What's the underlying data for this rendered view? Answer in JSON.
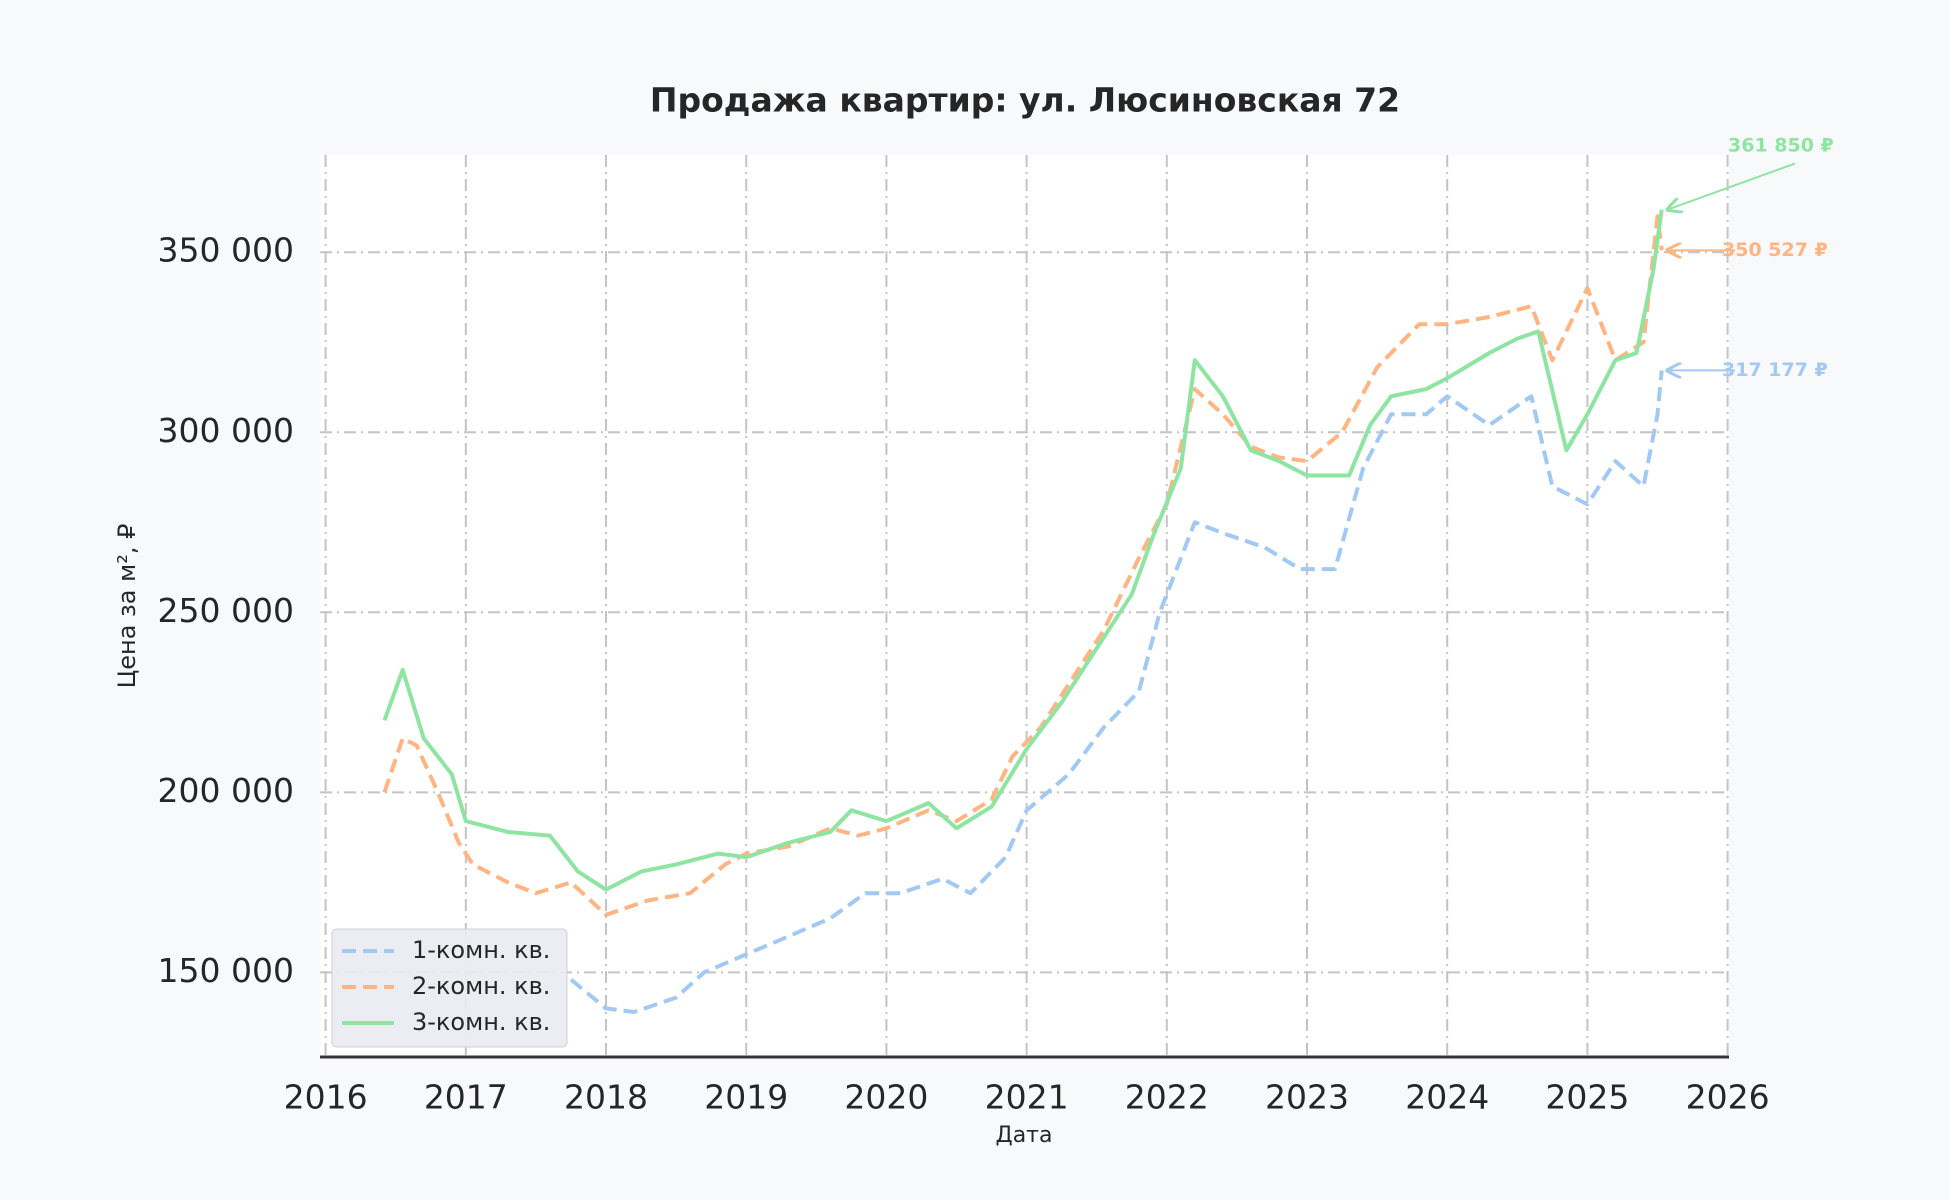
{
  "chart_data": {
    "type": "line",
    "title": "Продажа квартир: ул. Люсиновская 72",
    "x_label": "Дата",
    "y_label": "Цена за м², ₽",
    "xlim": [
      2015.96,
      2026.01
    ],
    "xticks": [
      2016,
      2017,
      2018,
      2019,
      2020,
      2021,
      2022,
      2023,
      2024,
      2025,
      2026
    ],
    "ylim": [
      126500,
      377000
    ],
    "yticks": [
      {
        "value": 150000,
        "label": "150 000"
      },
      {
        "value": 200000,
        "label": "200 000"
      },
      {
        "value": 250000,
        "label": "250 000"
      },
      {
        "value": 300000,
        "label": "300 000"
      },
      {
        "value": 350000,
        "label": "350 000"
      }
    ],
    "grid": true,
    "legend": "lower left",
    "series": [
      {
        "name": "1-комн. кв.",
        "color": "#a1c9f4",
        "linestyle": "dashed",
        "x": [
          2017.75,
          2018.0,
          2018.2,
          2018.5,
          2018.7,
          2019.0,
          2019.3,
          2019.6,
          2019.85,
          2020.1,
          2020.4,
          2020.6,
          2020.85,
          2021.0,
          2021.3,
          2021.55,
          2021.8,
          2021.95,
          2022.2,
          2022.4,
          2022.7,
          2022.95,
          2023.2,
          2023.4,
          2023.6,
          2023.85,
          2024.0,
          2024.3,
          2024.6,
          2024.75,
          2025.0,
          2025.2,
          2025.4,
          2025.5,
          2025.53
        ],
        "values": [
          148000,
          140000,
          139000,
          143000,
          150000,
          155000,
          160000,
          165000,
          172000,
          172000,
          176000,
          172000,
          182000,
          195000,
          205000,
          218000,
          228000,
          250000,
          275000,
          272000,
          268000,
          262000,
          262000,
          290000,
          305000,
          305000,
          310000,
          302000,
          310000,
          285000,
          280000,
          292000,
          285000,
          305000,
          317177
        ],
        "end_label": {
          "value": 317177,
          "label": "317 177 ₽"
        }
      },
      {
        "name": "2-комн. кв.",
        "color": "#ffb482",
        "linestyle": "dashed",
        "x": [
          2016.42,
          2016.55,
          2016.65,
          2016.8,
          2016.95,
          2017.05,
          2017.3,
          2017.5,
          2017.75,
          2018.0,
          2018.3,
          2018.6,
          2018.85,
          2019.0,
          2019.3,
          2019.6,
          2019.8,
          2020.0,
          2020.3,
          2020.5,
          2020.75,
          2020.9,
          2021.1,
          2021.3,
          2021.55,
          2021.8,
          2022.0,
          2022.2,
          2022.4,
          2022.6,
          2022.8,
          2023.0,
          2023.25,
          2023.5,
          2023.8,
          2024.0,
          2024.3,
          2024.6,
          2024.75,
          2025.0,
          2025.2,
          2025.4,
          2025.5,
          2025.53
        ],
        "values": [
          200000,
          215000,
          213000,
          200000,
          186000,
          180000,
          175000,
          172000,
          175000,
          166000,
          170000,
          172000,
          180000,
          183000,
          185000,
          190000,
          188000,
          190000,
          195000,
          192000,
          198000,
          210000,
          218000,
          230000,
          245000,
          265000,
          280000,
          312000,
          305000,
          296000,
          293000,
          292000,
          300000,
          318000,
          330000,
          330000,
          332000,
          335000,
          320000,
          340000,
          320000,
          325000,
          360000,
          350527
        ],
        "end_label": {
          "value": 350527,
          "label": "350 527 ₽"
        }
      },
      {
        "name": "3-комн. кв.",
        "color": "#8de5a1",
        "linestyle": "solid",
        "x": [
          2016.42,
          2016.55,
          2016.7,
          2016.9,
          2017.0,
          2017.3,
          2017.6,
          2017.8,
          2018.0,
          2018.25,
          2018.5,
          2018.8,
          2019.0,
          2019.3,
          2019.6,
          2019.75,
          2020.0,
          2020.3,
          2020.5,
          2020.75,
          2021.0,
          2021.25,
          2021.5,
          2021.75,
          2021.9,
          2022.1,
          2022.2,
          2022.4,
          2022.6,
          2022.8,
          2023.0,
          2023.3,
          2023.45,
          2023.6,
          2023.85,
          2024.0,
          2024.3,
          2024.5,
          2024.65,
          2024.85,
          2025.0,
          2025.2,
          2025.35,
          2025.47,
          2025.53
        ],
        "values": [
          220000,
          234000,
          215000,
          205000,
          192000,
          189000,
          188000,
          178000,
          173000,
          178000,
          180000,
          183000,
          182000,
          186000,
          189000,
          195000,
          192000,
          197000,
          190000,
          196000,
          212000,
          225000,
          240000,
          255000,
          271000,
          290000,
          320000,
          310000,
          295000,
          292000,
          288000,
          288000,
          302000,
          310000,
          312000,
          315000,
          322000,
          326000,
          328000,
          295000,
          305000,
          320000,
          322000,
          345000,
          361850
        ],
        "end_label": {
          "value": 361850,
          "label": "361 850 ₽"
        }
      }
    ]
  }
}
